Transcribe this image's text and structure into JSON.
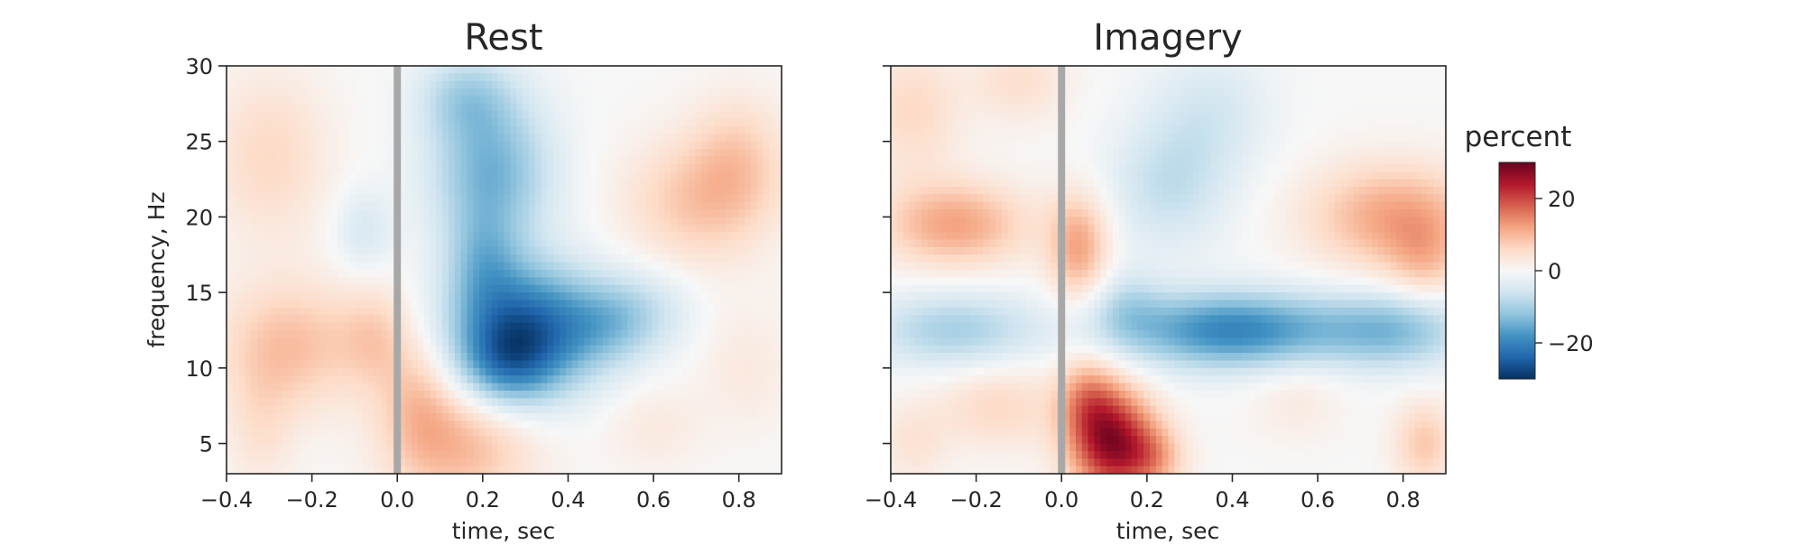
{
  "chart_data": {
    "type": "heatmap",
    "panels": [
      {
        "title": "Rest",
        "xlabel": "time, sec",
        "ylabel": "frequency, Hz",
        "xlim": [
          -0.4,
          0.9
        ],
        "ylim": [
          3,
          30
        ],
        "xticks": [
          -0.4,
          -0.2,
          0.0,
          0.2,
          0.4,
          0.6,
          0.8
        ],
        "xtick_labels": [
          "−0.4",
          "−0.2",
          "0.0",
          "0.2",
          "0.4",
          "0.6",
          "0.8"
        ],
        "yticks": [
          5,
          10,
          15,
          20,
          25,
          30
        ],
        "ytick_labels": [
          "5",
          "10",
          "15",
          "20",
          "25",
          "30"
        ],
        "show_ytick_labels": true,
        "event_marker_time": 0.0,
        "blobs": [
          {
            "t": -0.3,
            "f": 24,
            "st": 0.1,
            "sf": 4,
            "v": 6
          },
          {
            "t": -0.25,
            "f": 11.5,
            "st": 0.12,
            "sf": 3,
            "v": 9
          },
          {
            "t": -0.05,
            "f": 12,
            "st": 0.06,
            "sf": 2.5,
            "v": 6
          },
          {
            "t": -0.32,
            "f": 6,
            "st": 0.06,
            "sf": 3,
            "v": 4
          },
          {
            "t": -0.08,
            "f": 19,
            "st": 0.05,
            "sf": 2,
            "v": -5
          },
          {
            "t": 0.15,
            "f": 5,
            "st": 0.12,
            "sf": 3,
            "v": 10
          },
          {
            "t": 0.05,
            "f": 8,
            "st": 0.06,
            "sf": 3,
            "v": 6
          },
          {
            "t": 0.3,
            "f": 12.5,
            "st": 0.12,
            "sf": 3,
            "v": -24
          },
          {
            "t": 0.25,
            "f": 10,
            "st": 0.08,
            "sf": 2,
            "v": -10
          },
          {
            "t": 0.5,
            "f": 13,
            "st": 0.08,
            "sf": 2,
            "v": -8
          },
          {
            "t": 0.6,
            "f": 14,
            "st": 0.08,
            "sf": 2,
            "v": -4
          },
          {
            "t": 0.22,
            "f": 23,
            "st": 0.1,
            "sf": 3.5,
            "v": -14
          },
          {
            "t": 0.16,
            "f": 28,
            "st": 0.08,
            "sf": 2,
            "v": -8
          },
          {
            "t": 0.2,
            "f": 17,
            "st": 0.06,
            "sf": 2.5,
            "v": -8
          },
          {
            "t": 0.7,
            "f": 21,
            "st": 0.12,
            "sf": 3,
            "v": 8
          },
          {
            "t": 0.8,
            "f": 24,
            "st": 0.08,
            "sf": 3,
            "v": 6
          },
          {
            "t": 0.82,
            "f": 10,
            "st": 0.08,
            "sf": 3,
            "v": 3
          },
          {
            "t": 0.6,
            "f": 6,
            "st": 0.08,
            "sf": 2,
            "v": 3
          }
        ]
      },
      {
        "title": "Imagery",
        "xlabel": "time, sec",
        "ylabel": "",
        "xlim": [
          -0.4,
          0.9
        ],
        "ylim": [
          3,
          30
        ],
        "xticks": [
          -0.4,
          -0.2,
          0.0,
          0.2,
          0.4,
          0.6,
          0.8
        ],
        "xtick_labels": [
          "−0.4",
          "−0.2",
          "0.0",
          "0.2",
          "0.4",
          "0.6",
          "0.8"
        ],
        "yticks": [
          5,
          10,
          15,
          20,
          25,
          30
        ],
        "ytick_labels": [
          "5",
          "10",
          "15",
          "20",
          "25",
          "30"
        ],
        "show_ytick_labels": false,
        "event_marker_time": 0.0,
        "blobs": [
          {
            "t": -0.25,
            "f": 19.5,
            "st": 0.12,
            "sf": 2,
            "v": 12
          },
          {
            "t": -0.35,
            "f": 27,
            "st": 0.08,
            "sf": 3,
            "v": 6
          },
          {
            "t": -0.1,
            "f": 29,
            "st": 0.08,
            "sf": 2,
            "v": 5
          },
          {
            "t": -0.25,
            "f": 12.5,
            "st": 0.14,
            "sf": 1.8,
            "v": -10
          },
          {
            "t": -0.15,
            "f": 7.5,
            "st": 0.1,
            "sf": 2,
            "v": 6
          },
          {
            "t": -0.35,
            "f": 5,
            "st": 0.06,
            "sf": 2,
            "v": 4
          },
          {
            "t": 0.04,
            "f": 18,
            "st": 0.05,
            "sf": 2.5,
            "v": 12
          },
          {
            "t": 0.12,
            "f": 5,
            "st": 0.07,
            "sf": 2.5,
            "v": 26
          },
          {
            "t": 0.06,
            "f": 8,
            "st": 0.05,
            "sf": 2,
            "v": 10
          },
          {
            "t": 0.22,
            "f": 4,
            "st": 0.05,
            "sf": 1.5,
            "v": 8
          },
          {
            "t": 0.4,
            "f": 12.5,
            "st": 0.18,
            "sf": 1.8,
            "v": -20
          },
          {
            "t": 0.78,
            "f": 12.5,
            "st": 0.12,
            "sf": 1.8,
            "v": -12
          },
          {
            "t": 0.15,
            "f": 14,
            "st": 0.06,
            "sf": 1.8,
            "v": -6
          },
          {
            "t": 0.25,
            "f": 22,
            "st": 0.1,
            "sf": 3,
            "v": -7
          },
          {
            "t": 0.35,
            "f": 27,
            "st": 0.1,
            "sf": 3,
            "v": -5
          },
          {
            "t": 0.78,
            "f": 20,
            "st": 0.14,
            "sf": 2.5,
            "v": 12
          },
          {
            "t": 0.85,
            "f": 17,
            "st": 0.06,
            "sf": 2,
            "v": 6
          },
          {
            "t": 0.55,
            "f": 8,
            "st": 0.08,
            "sf": 2,
            "v": 3
          },
          {
            "t": 0.85,
            "f": 5,
            "st": 0.05,
            "sf": 2,
            "v": 8
          }
        ]
      }
    ],
    "colorbar": {
      "label": "percent",
      "vmin": -30,
      "vmax": 30,
      "ticks": [
        20,
        0,
        -20
      ],
      "tick_labels": [
        "20",
        "0",
        "−20"
      ],
      "colormap": "RdBu_r",
      "stops": [
        "#053061",
        "#2166ac",
        "#4393c3",
        "#92c5de",
        "#d1e5f0",
        "#f7f7f7",
        "#fddbc7",
        "#f4a582",
        "#d6604d",
        "#b2182b",
        "#67001f"
      ]
    },
    "marker_color": "#a8a8a8"
  }
}
